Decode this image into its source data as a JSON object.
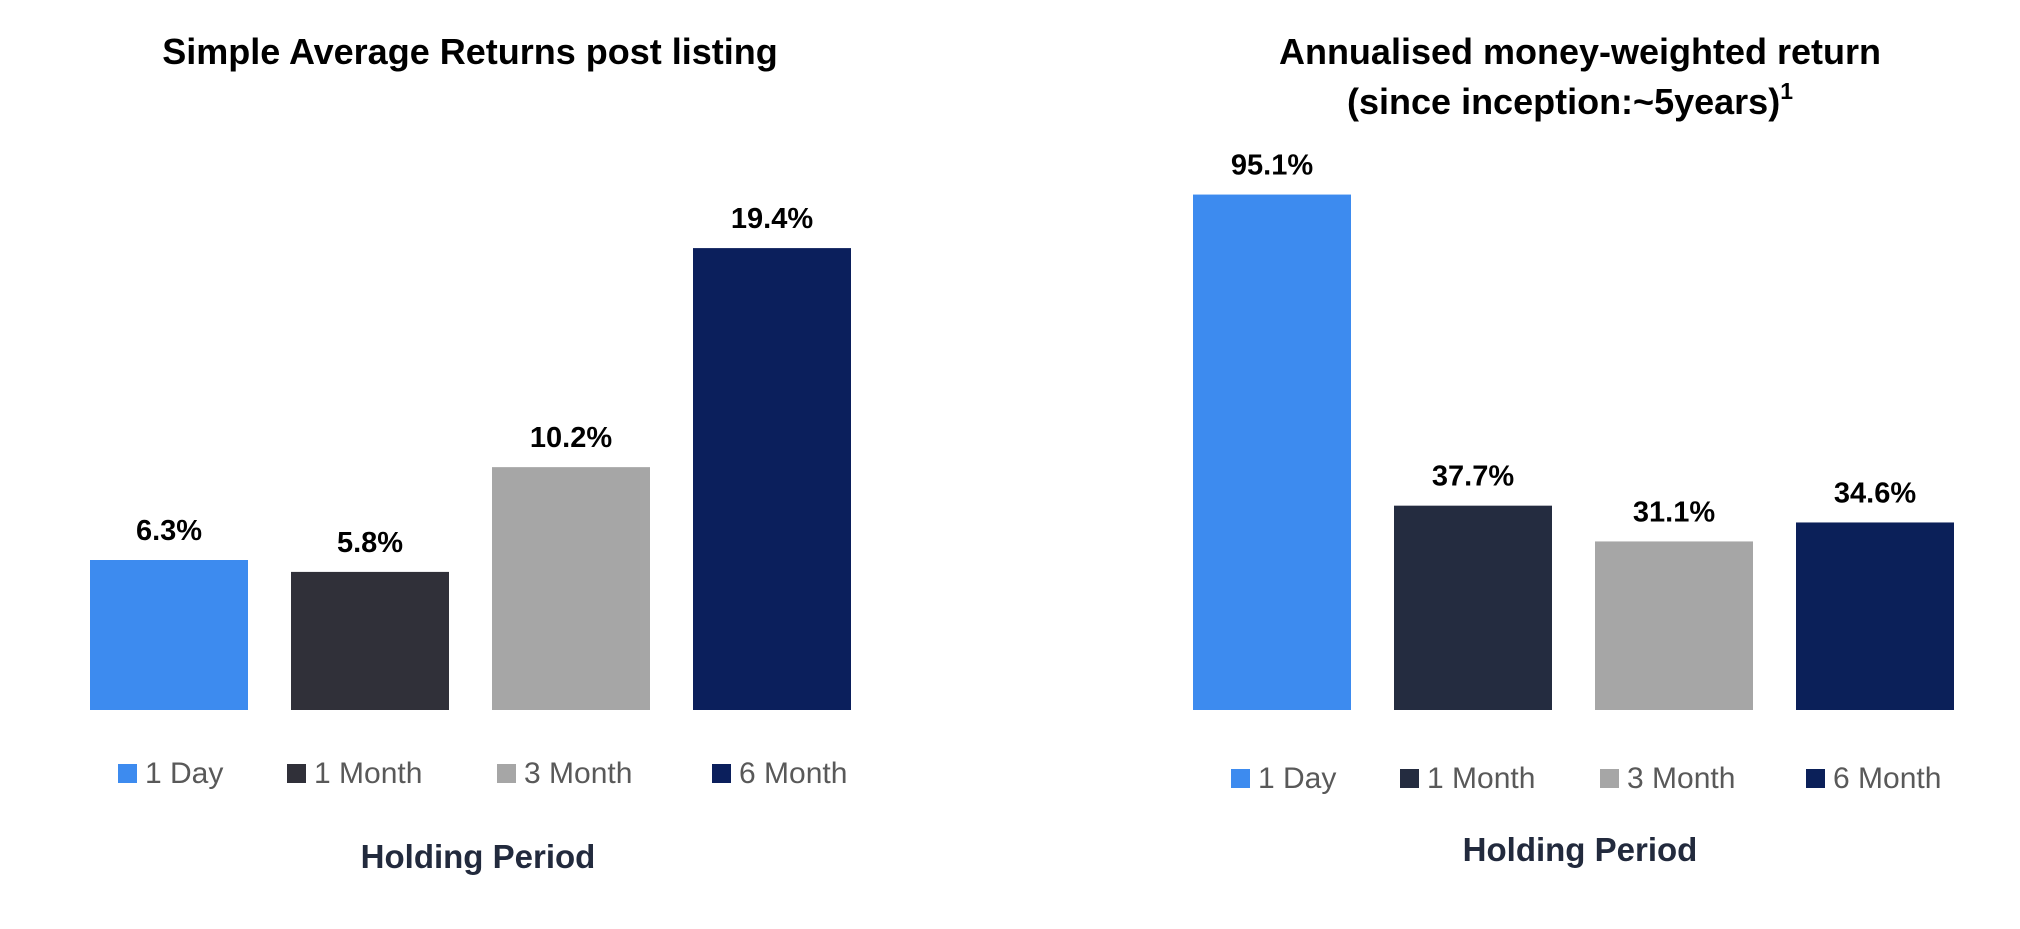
{
  "chart_data": [
    {
      "type": "bar",
      "title": "Simple Average Returns post listing",
      "categories": [
        "1 Day",
        "1 Month",
        "3 Month",
        "6 Month"
      ],
      "values": [
        6.3,
        5.8,
        10.2,
        19.4
      ],
      "value_labels": [
        "6.3%",
        "5.8%",
        "10.2%",
        "19.4%"
      ],
      "colors": [
        "#3d8bef",
        "#303039",
        "#a6a6a6",
        "#0b1f5c"
      ],
      "xlabel": "Holding Period",
      "ylabel": "",
      "ylim": [
        0,
        21
      ],
      "grid": false,
      "legend": "bottom"
    },
    {
      "type": "bar",
      "title": "Annualised money-weighted return",
      "subtitle": "(since inception:~5years)",
      "subtitle_footnote": "1",
      "categories": [
        "1 Day",
        "1 Month",
        "3 Month",
        "6 Month"
      ],
      "values": [
        95.1,
        37.7,
        31.1,
        34.6
      ],
      "value_labels": [
        "95.1%",
        "37.7%",
        "31.1%",
        "34.6%"
      ],
      "colors": [
        "#3d8bef",
        "#242c40",
        "#a6a6a6",
        "#0b2059"
      ],
      "xlabel": "Holding Period",
      "ylabel": "",
      "ylim": [
        0,
        100
      ],
      "grid": false,
      "legend": "bottom"
    }
  ]
}
